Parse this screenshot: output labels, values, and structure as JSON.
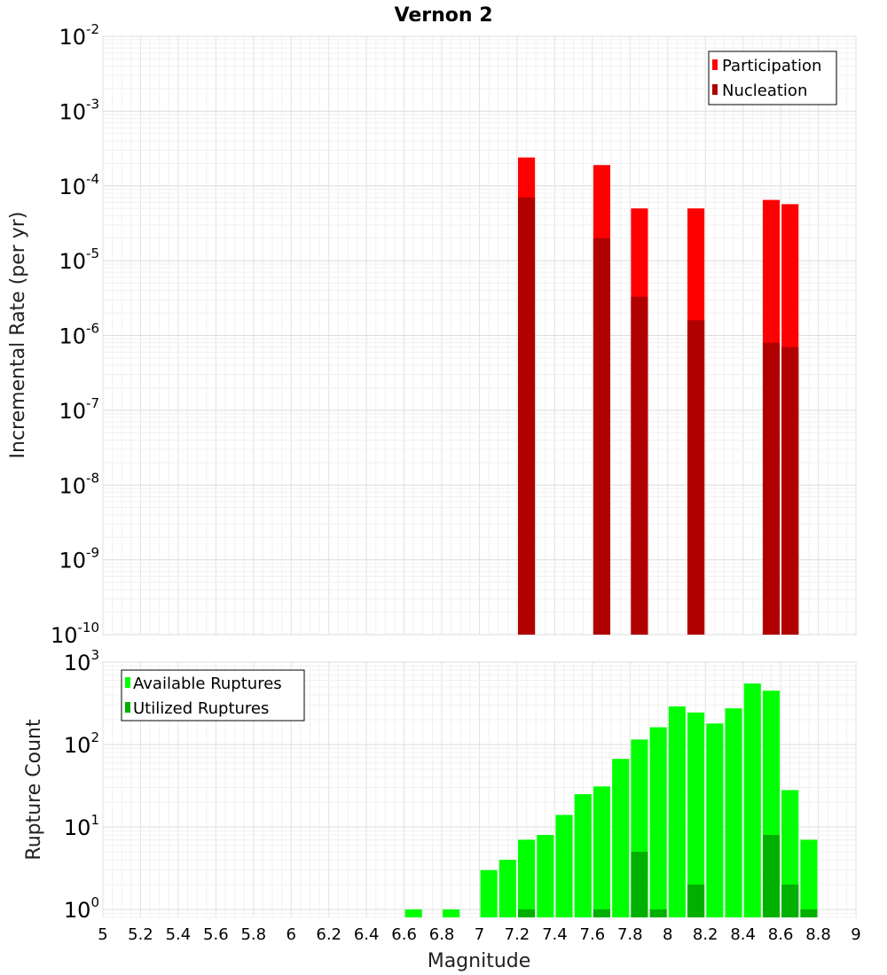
{
  "title": "Vernon 2",
  "chart_data": [
    {
      "type": "bar",
      "scale": "log",
      "ylabel": "Incremental Rate (per yr)",
      "ylim": [
        1e-10,
        0.01
      ],
      "yticks": [
        {
          "base": "10",
          "exp": "-10"
        },
        {
          "base": "10",
          "exp": "-9"
        },
        {
          "base": "10",
          "exp": "-8"
        },
        {
          "base": "10",
          "exp": "-7"
        },
        {
          "base": "10",
          "exp": "-6"
        },
        {
          "base": "10",
          "exp": "-5"
        },
        {
          "base": "10",
          "exp": "-4"
        },
        {
          "base": "10",
          "exp": "-3"
        },
        {
          "base": "10",
          "exp": "-2"
        }
      ],
      "legend_position": "top-right",
      "series": [
        {
          "name": "Participation",
          "color": "#ff0000",
          "x": [
            7.25,
            7.65,
            7.85,
            8.15,
            8.55,
            8.65
          ],
          "values": [
            0.00024,
            0.00019,
            5e-05,
            5e-05,
            6.5e-05,
            5.7e-05
          ]
        },
        {
          "name": "Nucleation",
          "color": "#b00000",
          "x": [
            7.25,
            7.65,
            7.85,
            8.15,
            8.55,
            8.65
          ],
          "values": [
            7e-05,
            2e-05,
            3.3e-06,
            1.6e-06,
            8e-07,
            7e-07
          ]
        }
      ]
    },
    {
      "type": "bar",
      "scale": "log",
      "ylabel": "Rupture Count",
      "ylim": [
        0.8,
        1000
      ],
      "yticks": [
        {
          "base": "10",
          "exp": "0"
        },
        {
          "base": "10",
          "exp": "1"
        },
        {
          "base": "10",
          "exp": "2"
        },
        {
          "base": "10",
          "exp": "3"
        }
      ],
      "legend_position": "top-left",
      "series": [
        {
          "name": "Available Ruptures",
          "color": "#00ff00",
          "x": [
            6.65,
            6.85,
            7.05,
            7.15,
            7.25,
            7.35,
            7.45,
            7.55,
            7.65,
            7.75,
            7.85,
            7.95,
            8.05,
            8.15,
            8.25,
            8.35,
            8.45,
            8.55,
            8.65,
            8.75
          ],
          "values": [
            1,
            1,
            3,
            4,
            7,
            8,
            14,
            25,
            31,
            67,
            115,
            162,
            290,
            245,
            180,
            275,
            550,
            450,
            28,
            7
          ]
        },
        {
          "name": "Utilized Ruptures",
          "color": "#00b000",
          "x": [
            7.25,
            7.65,
            7.85,
            7.95,
            8.15,
            8.55,
            8.65,
            8.75
          ],
          "values": [
            1,
            1,
            5,
            1,
            2,
            8,
            2,
            1
          ]
        }
      ]
    }
  ],
  "xaxis": {
    "label": "Magnitude",
    "xlim": [
      5,
      9
    ],
    "ticks": [
      "5",
      "5.2",
      "5.4",
      "5.6",
      "5.8",
      "6",
      "6.2",
      "6.4",
      "6.6",
      "6.8",
      "7",
      "7.2",
      "7.4",
      "7.6",
      "7.8",
      "8",
      "8.2",
      "8.4",
      "8.6",
      "8.8",
      "9"
    ]
  }
}
